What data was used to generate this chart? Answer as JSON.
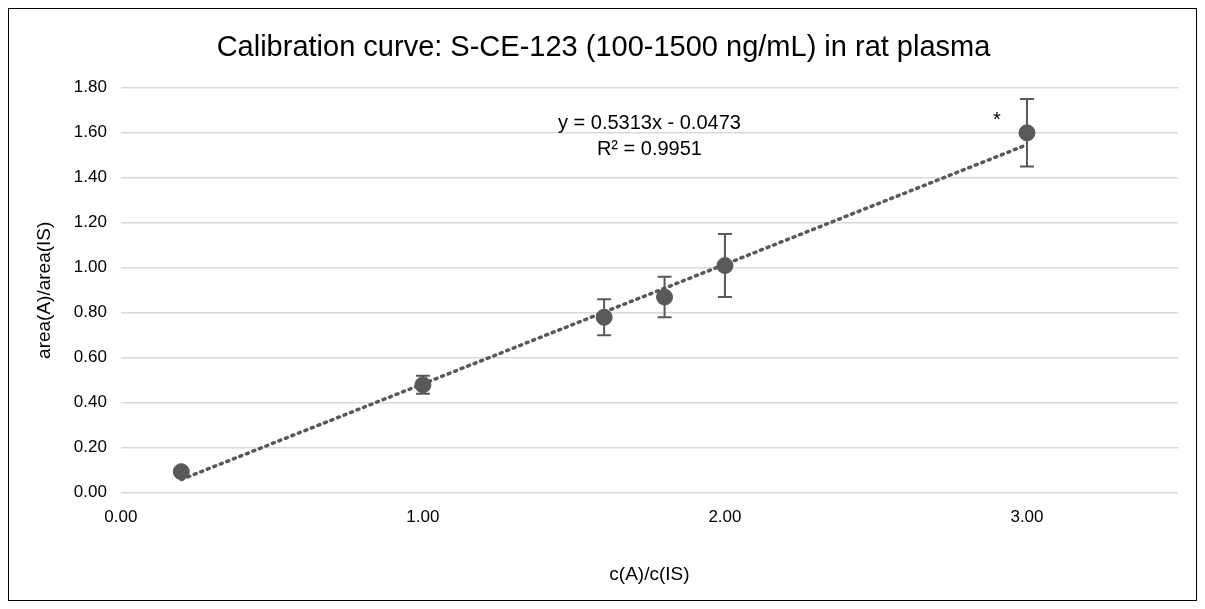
{
  "chart_data": {
    "type": "scatter",
    "title": "Calibration curve: S-CE-123 (100-1500 ng/mL) in rat plasma",
    "xlabel": "c(A)/c(IS)",
    "ylabel": "area(A)/area(IS)",
    "x": [
      0.2,
      1.0,
      1.6,
      1.8,
      2.0,
      3.0
    ],
    "series": [
      {
        "color": "#595959",
        "values": [
          0.094,
          0.48,
          0.78,
          0.87,
          1.01,
          1.6
        ],
        "errors": [
          null,
          0.04,
          0.08,
          0.09,
          0.14,
          0.15
        ],
        "marker": "circle"
      },
      {
        "type": "line",
        "color": "#595959",
        "x": [
          0.2,
          3.0
        ],
        "values": [
          0.059,
          1.547
        ],
        "marker": "none",
        "line_style": "dotted"
      }
    ],
    "annotations": [
      "y = 0.5313x - 0.0473",
      "R² = 0.9951",
      {
        "text": "*",
        "x": 3.0,
        "y": 1.6
      }
    ],
    "xlim": [
      0,
      3.5
    ],
    "xticks": [
      {
        "value": 0,
        "label": "0.00"
      },
      {
        "value": 1,
        "label": "1.00"
      },
      {
        "value": 2,
        "label": "2.00"
      },
      {
        "value": 3,
        "label": "3.00"
      }
    ],
    "ylim": [
      0,
      1.8
    ],
    "yticks": [
      {
        "value": 0,
        "label": "0.00"
      },
      {
        "value": 0.2,
        "label": "0.20"
      },
      {
        "value": 0.4,
        "label": "0.40"
      },
      {
        "value": 0.6,
        "label": "0.60"
      },
      {
        "value": 0.8,
        "label": "0.80"
      },
      {
        "value": 1,
        "label": "1.00"
      },
      {
        "value": 1.2,
        "label": "1.20"
      },
      {
        "value": 1.4,
        "label": "1.40"
      },
      {
        "value": 1.6,
        "label": "1.60"
      },
      {
        "value": 1.8,
        "label": "1.80"
      }
    ],
    "grid": "y",
    "legend": false
  }
}
